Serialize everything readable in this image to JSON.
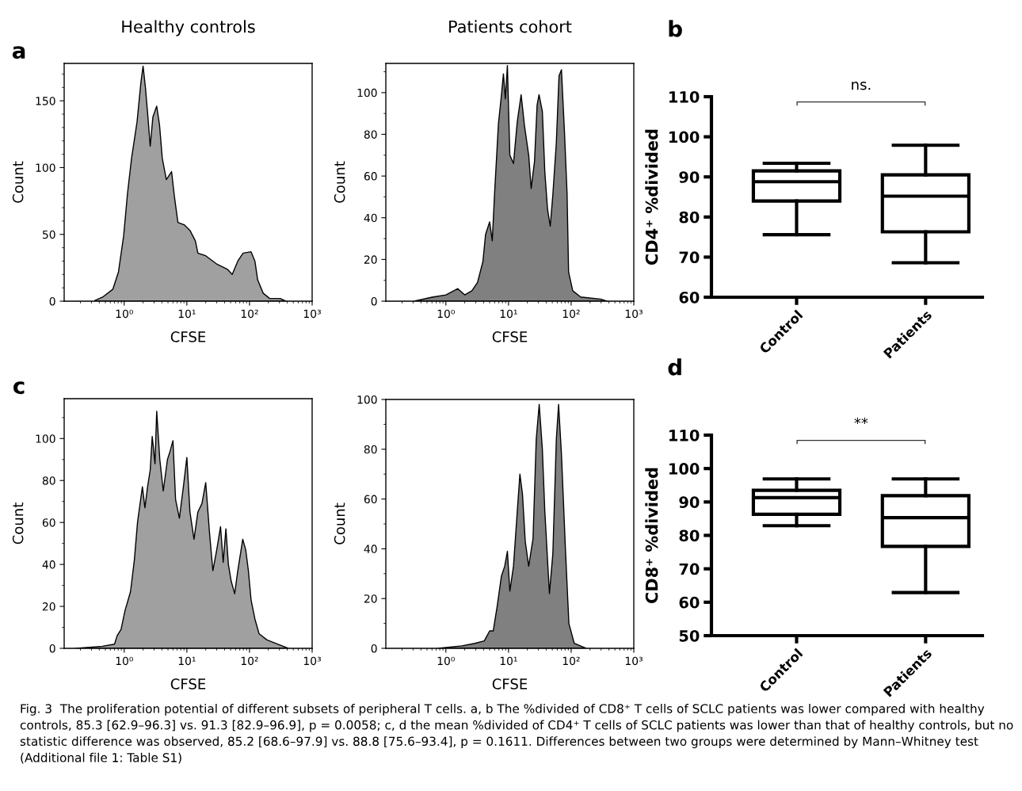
{
  "chart_data": [
    {
      "type": "area",
      "title": "Healthy controls",
      "xlabel": "CFSE",
      "ylabel": "Count",
      "log": "x",
      "annotations": [
        "a"
      ],
      "xlim": [
        0.11,
        1000
      ],
      "xticks": [
        {
          "value": 1,
          "label": "10⁰"
        },
        {
          "value": 10,
          "label": "10¹"
        },
        {
          "value": 100,
          "label": "10²"
        },
        {
          "value": 1000,
          "label": "10³"
        }
      ],
      "ylim": [
        0,
        178
      ],
      "yticks": [
        0,
        50,
        100,
        150
      ],
      "x": [
        0.34,
        0.45,
        0.66,
        0.81,
        0.98,
        1.13,
        1.31,
        1.6,
        1.85,
        2.0,
        2.18,
        2.36,
        2.6,
        2.87,
        3.3,
        3.66,
        4.05,
        4.7,
        5.7,
        6.3,
        7.2,
        9.2,
        11.2,
        13.7,
        15,
        20,
        29.6,
        44,
        53,
        65,
        79,
        106,
        122,
        135,
        165,
        210,
        310,
        380
      ],
      "series": [
        {
          "color": "#a0a0a0",
          "values": [
            0.5,
            3,
            9,
            22,
            49,
            81,
            107,
            134,
            164,
            176,
            160,
            141,
            116,
            138,
            146,
            132,
            107,
            91,
            97,
            79,
            59,
            57,
            53,
            45,
            36,
            34,
            28,
            24,
            20,
            30,
            36,
            37,
            30,
            16,
            6,
            2,
            2,
            0
          ]
        }
      ]
    },
    {
      "type": "area",
      "title": "Patients cohort",
      "xlabel": "CFSE",
      "ylabel": "Count",
      "log": "x",
      "xlim": [
        0.11,
        1000
      ],
      "xticks": [
        {
          "value": 1,
          "label": "10⁰"
        },
        {
          "value": 10,
          "label": "10¹"
        },
        {
          "value": 100,
          "label": "10²"
        },
        {
          "value": 1000,
          "label": "10³"
        }
      ],
      "ylim": [
        0,
        114
      ],
      "yticks": [
        0,
        20,
        40,
        60,
        80,
        100
      ],
      "x": [
        0.31,
        0.62,
        1.0,
        1.55,
        2.0,
        2.6,
        3.2,
        3.9,
        4.3,
        5.0,
        5.5,
        6.0,
        6.9,
        7.6,
        8.3,
        8.9,
        9.6,
        10.5,
        12,
        13.8,
        15.9,
        18,
        21,
        23,
        26,
        28.6,
        30.7,
        34.7,
        38,
        42,
        46.4,
        51,
        58,
        64,
        70,
        78,
        86,
        91,
        106,
        142,
        295,
        375
      ],
      "series": [
        {
          "color": "#808080",
          "values": [
            0,
            2,
            3,
            6,
            3,
            5,
            9,
            19,
            32,
            38,
            29,
            52,
            85,
            97,
            109,
            97,
            113,
            70,
            66,
            86,
            99,
            84,
            70,
            54,
            67,
            94,
            99,
            91,
            62,
            44,
            36,
            51,
            76,
            108,
            111,
            82,
            52,
            14,
            5,
            2,
            1,
            0
          ]
        }
      ]
    },
    {
      "type": "box",
      "categories": [
        "Control",
        "Patients"
      ],
      "ylabel": "CD4⁺ %divided",
      "annotations": [
        "b",
        "ns."
      ],
      "ylim": [
        60,
        110
      ],
      "yticks": [
        60,
        70,
        80,
        90,
        100,
        110
      ],
      "boxes": [
        {
          "low": 75.6,
          "q1": 84,
          "median": 88.8,
          "q3": 91.5,
          "high": 93.4
        },
        {
          "low": 68.6,
          "q1": 76.3,
          "median": 85.2,
          "q3": 90.5,
          "high": 97.9
        }
      ]
    },
    {
      "type": "area",
      "xlabel": "CFSE",
      "ylabel": "Count",
      "log": "x",
      "annotations": [
        "c"
      ],
      "xlim": [
        0.11,
        1000
      ],
      "xticks": [
        {
          "value": 1,
          "label": "10⁰"
        },
        {
          "value": 10,
          "label": "10¹"
        },
        {
          "value": 100,
          "label": "10²"
        },
        {
          "value": 1000,
          "label": "10³"
        }
      ],
      "ylim": [
        0,
        119
      ],
      "yticks": [
        0,
        20,
        40,
        60,
        80,
        100
      ],
      "x": [
        0.17,
        0.45,
        0.7,
        0.77,
        0.89,
        1.03,
        1.26,
        1.45,
        1.63,
        1.95,
        2.14,
        2.36,
        2.6,
        2.8,
        3.1,
        3.3,
        3.7,
        4.2,
        4.9,
        5.4,
        6.0,
        6.6,
        7.6,
        8.8,
        10,
        11.2,
        13,
        15,
        17.4,
        20,
        23,
        26,
        30,
        34.5,
        38,
        42,
        46,
        51,
        58,
        65,
        78,
        87,
        96,
        106,
        122,
        142,
        190,
        280,
        415
      ],
      "series": [
        {
          "color": "#a0a0a0",
          "values": [
            0,
            1,
            2,
            6,
            9,
            18,
            27,
            42,
            60,
            77,
            67,
            77,
            85,
            101,
            88,
            113,
            90,
            75,
            90,
            94,
            99,
            71,
            62,
            77,
            91,
            65,
            52,
            65,
            69,
            79,
            55,
            37,
            47,
            58,
            41,
            57,
            40,
            32,
            26,
            37,
            52,
            47,
            37,
            23,
            14,
            7,
            4,
            2,
            0
          ]
        }
      ]
    },
    {
      "type": "area",
      "xlabel": "CFSE",
      "ylabel": "Count",
      "log": "x",
      "xlim": [
        0.11,
        1000
      ],
      "xticks": [
        {
          "value": 1,
          "label": "10⁰"
        },
        {
          "value": 10,
          "label": "10¹"
        },
        {
          "value": 100,
          "label": "10²"
        },
        {
          "value": 1000,
          "label": "10³"
        }
      ],
      "ylim": [
        0,
        100
      ],
      "yticks": [
        0,
        20,
        40,
        60,
        80,
        100
      ],
      "x": [
        0.75,
        1.8,
        2.9,
        4.1,
        5.0,
        5.7,
        6.6,
        7.7,
        8.7,
        9.6,
        10.5,
        12,
        13.8,
        15.2,
        16.7,
        18.5,
        21,
        24.6,
        27.7,
        30.9,
        34.7,
        38,
        45,
        51,
        58,
        63,
        70,
        81,
        92,
        112,
        173
      ],
      "series": [
        {
          "color": "#808080",
          "values": [
            0,
            1,
            2,
            3,
            7,
            7,
            17,
            29,
            33,
            39,
            23,
            33,
            55,
            70,
            62,
            43,
            33,
            44,
            84,
            98,
            80,
            55,
            22,
            38,
            84,
            98,
            78,
            40,
            10,
            2,
            0
          ]
        }
      ]
    },
    {
      "type": "box",
      "categories": [
        "Control",
        "Patients"
      ],
      "ylabel": "CD8⁺ %divided",
      "annotations": [
        "d",
        "**",
        "Fig. 3  The proliferation potential of different subsets of peripheral T cells. a, b The %divided of CD8⁺ T cells of SCLC patients was lower compared with healthy controls, 85.3 [62.9–96.3] vs. 91.3 [82.9–96.9], p = 0.0058; c, d the mean %divided of CD4⁺ T cells of SCLC patients was lower than that of healthy controls, but no statistic difference was observed, 85.2 [68.6–97.9] vs. 88.8 [75.6–93.4], p = 0.1611. Differences between two groups were determined by Mann–Whitney test (Additional file 1: Table S1)"
      ],
      "ylim": [
        50,
        110
      ],
      "yticks": [
        50,
        60,
        70,
        80,
        90,
        100,
        110
      ],
      "boxes": [
        {
          "low": 82.9,
          "q1": 86.3,
          "median": 91.3,
          "q3": 93.5,
          "high": 96.9
        },
        {
          "low": 62.9,
          "q1": 76.7,
          "median": 85.3,
          "q3": 91.9,
          "high": 96.9
        }
      ]
    }
  ]
}
